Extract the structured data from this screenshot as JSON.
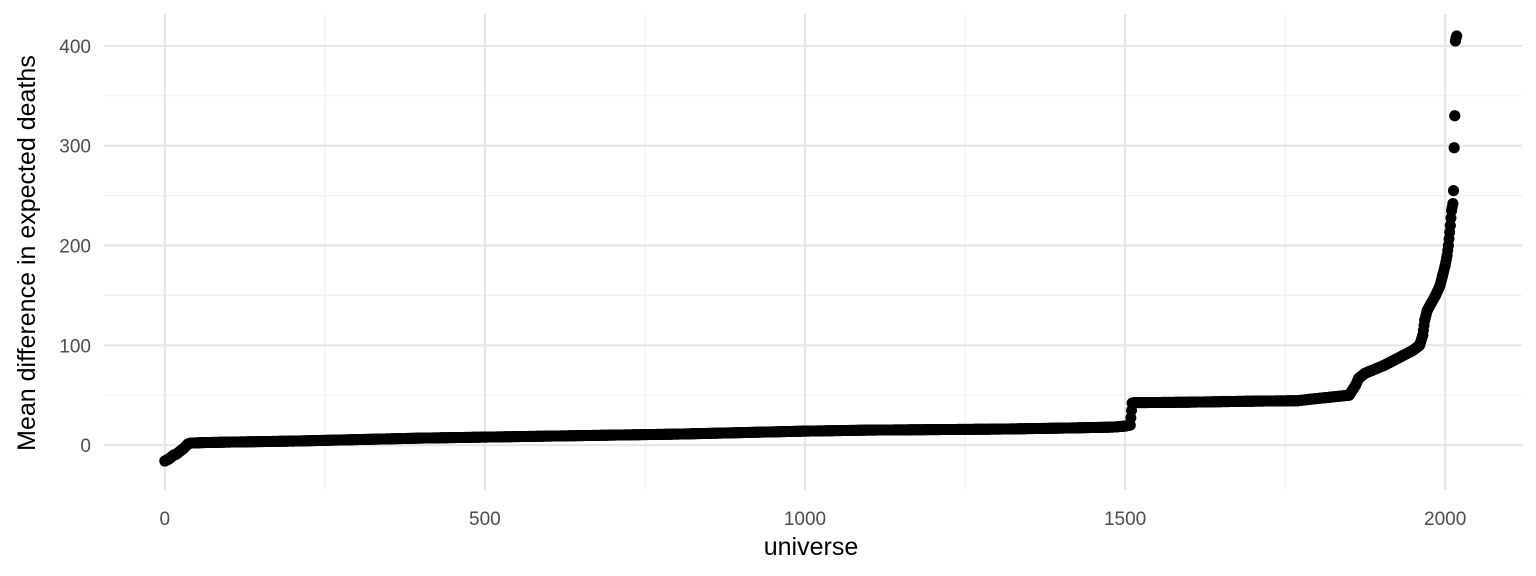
{
  "chart_data": {
    "type": "scatter",
    "xlabel": "universe",
    "ylabel": "Mean difference in expected deaths",
    "xlim": [
      -95,
      2120
    ],
    "ylim": [
      -45,
      432
    ],
    "x_ticks": [
      0,
      500,
      1000,
      1500,
      2000
    ],
    "x_tick_labels": [
      "0",
      "500",
      "1000",
      "1500",
      "2000"
    ],
    "y_ticks": [
      0,
      100,
      200,
      300,
      400
    ],
    "y_tick_labels": [
      "0",
      "100",
      "200",
      "300",
      "400"
    ],
    "x_minor_ticks": [
      250,
      750,
      1250,
      1750
    ],
    "y_minor_ticks": [
      50,
      150,
      250,
      350
    ],
    "grid": true,
    "legend": "none",
    "point_color": "#000000",
    "curve": [
      [
        0,
        -16
      ],
      [
        3,
        -15
      ],
      [
        6,
        -14
      ],
      [
        10,
        -12
      ],
      [
        14,
        -10
      ],
      [
        18,
        -9
      ],
      [
        22,
        -7
      ],
      [
        26,
        -5
      ],
      [
        30,
        -3
      ],
      [
        33,
        -1
      ],
      [
        36,
        1
      ],
      [
        40,
        2
      ],
      [
        60,
        2.5
      ],
      [
        100,
        3
      ],
      [
        200,
        4
      ],
      [
        300,
        5.5
      ],
      [
        400,
        7
      ],
      [
        500,
        8
      ],
      [
        600,
        9
      ],
      [
        700,
        10
      ],
      [
        800,
        11
      ],
      [
        900,
        12.5
      ],
      [
        1000,
        14
      ],
      [
        1100,
        15
      ],
      [
        1200,
        15.5
      ],
      [
        1300,
        16
      ],
      [
        1400,
        17
      ],
      [
        1480,
        18
      ],
      [
        1500,
        19
      ],
      [
        1508,
        20
      ],
      [
        1511,
        42
      ],
      [
        1515,
        42.5
      ],
      [
        1600,
        43
      ],
      [
        1700,
        44
      ],
      [
        1770,
        44.5
      ],
      [
        1790,
        46
      ],
      [
        1820,
        48
      ],
      [
        1850,
        50
      ],
      [
        1855,
        55
      ],
      [
        1860,
        60
      ],
      [
        1865,
        67
      ],
      [
        1875,
        72
      ],
      [
        1890,
        76
      ],
      [
        1905,
        80
      ],
      [
        1920,
        85
      ],
      [
        1935,
        90
      ],
      [
        1950,
        95
      ],
      [
        1960,
        100
      ],
      [
        1965,
        110
      ],
      [
        1968,
        125
      ],
      [
        1972,
        135
      ],
      [
        1978,
        142
      ],
      [
        1985,
        150
      ],
      [
        1992,
        160
      ],
      [
        1996,
        170
      ],
      [
        2000,
        180
      ],
      [
        2003,
        190
      ],
      [
        2005,
        200
      ],
      [
        2008,
        220
      ],
      [
        2010,
        235
      ],
      [
        2012,
        242
      ],
      [
        2013,
        255
      ],
      [
        2014,
        298
      ],
      [
        2015,
        330
      ],
      [
        2016,
        405
      ],
      [
        2017,
        408
      ],
      [
        2018,
        410
      ]
    ]
  }
}
